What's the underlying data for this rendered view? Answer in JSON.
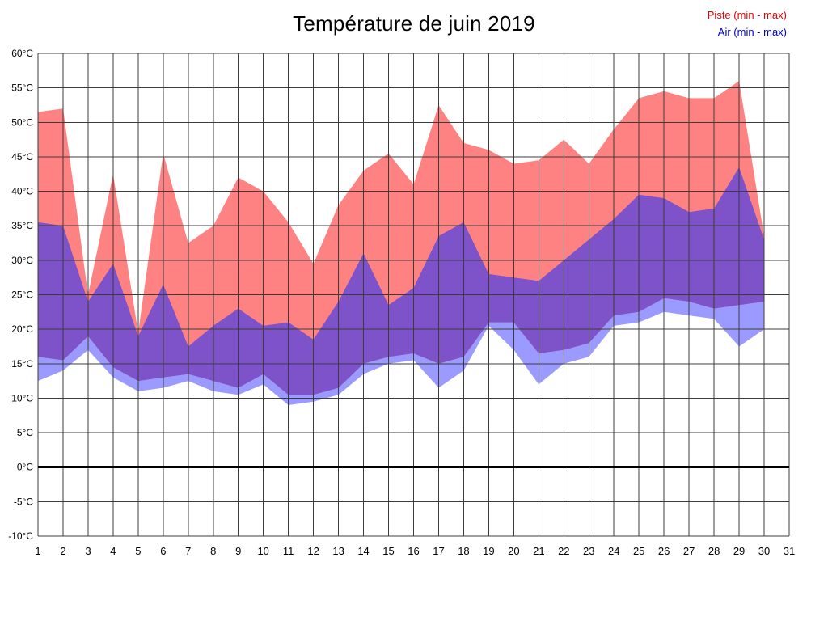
{
  "title": "Température de juin 2019",
  "legend": {
    "piste": "Piste (min - max)",
    "air": "Air (min - max)"
  },
  "chart_data": {
    "type": "area",
    "title": "Température de juin 2019",
    "legend_position": "top-right",
    "grid": "on",
    "xlim": [
      1,
      31
    ],
    "ylim": [
      -10,
      60
    ],
    "x": [
      1,
      2,
      3,
      4,
      5,
      6,
      7,
      8,
      9,
      10,
      11,
      12,
      13,
      14,
      15,
      16,
      17,
      18,
      19,
      20,
      21,
      22,
      23,
      24,
      25,
      26,
      27,
      28,
      29,
      30
    ],
    "x_ticks": [
      "1",
      "2",
      "3",
      "4",
      "5",
      "6",
      "7",
      "8",
      "9",
      "10",
      "11",
      "12",
      "13",
      "14",
      "15",
      "16",
      "17",
      "18",
      "19",
      "20",
      "21",
      "22",
      "23",
      "24",
      "25",
      "26",
      "27",
      "28",
      "29",
      "30",
      "31"
    ],
    "y_ticks": [
      "60°C",
      "55°C",
      "50°C",
      "45°C",
      "40°C",
      "35°C",
      "30°C",
      "25°C",
      "20°C",
      "15°C",
      "10°C",
      "5°C",
      "0°C",
      "-5°C",
      "-10°C"
    ],
    "series": [
      {
        "name": "Piste min",
        "values": [
          16,
          15.5,
          19,
          14.5,
          12.5,
          13,
          13.5,
          12.5,
          11.5,
          13.5,
          10.5,
          10.5,
          11.5,
          15,
          16,
          16.5,
          15,
          16,
          21,
          21,
          16.5,
          17,
          18,
          22,
          22.5,
          24.5,
          24,
          23,
          23.5,
          24
        ]
      },
      {
        "name": "Piste max",
        "values": [
          51.5,
          52,
          25,
          42.5,
          19.5,
          45.5,
          32.5,
          35,
          42,
          40,
          35.5,
          29.5,
          38,
          43,
          45.5,
          41,
          52.5,
          47,
          46,
          44,
          44.5,
          47.5,
          44,
          49,
          53.5,
          54.5,
          53.5,
          53.5,
          56,
          33.5
        ]
      },
      {
        "name": "Air min",
        "values": [
          12.5,
          14,
          17,
          13,
          11,
          11.5,
          12.5,
          11,
          10.5,
          12,
          9,
          9.5,
          10.5,
          13.5,
          15,
          15.5,
          11.5,
          14,
          20.5,
          17,
          12,
          15,
          16,
          20.5,
          21,
          22.5,
          22,
          21.5,
          17.5,
          20
        ]
      },
      {
        "name": "Air max",
        "values": [
          35.5,
          35,
          24,
          29.5,
          19,
          26.5,
          17.5,
          20.5,
          23,
          20.5,
          21,
          18.5,
          24,
          31,
          23.5,
          26,
          33.5,
          35.5,
          28,
          27.5,
          27,
          30,
          33,
          36,
          39.5,
          39,
          37,
          37.5,
          43.5,
          33
        ]
      }
    ],
    "colors": {
      "piste_fill": "#ff8282",
      "air_fill": "#9b9bff",
      "overlap_fill": "#7e52c8",
      "piste_text": "#e60000",
      "air_text": "#0000cc",
      "grid": "#3c3c3c",
      "zero_line": "#000000",
      "tick_text": "#000000"
    }
  }
}
